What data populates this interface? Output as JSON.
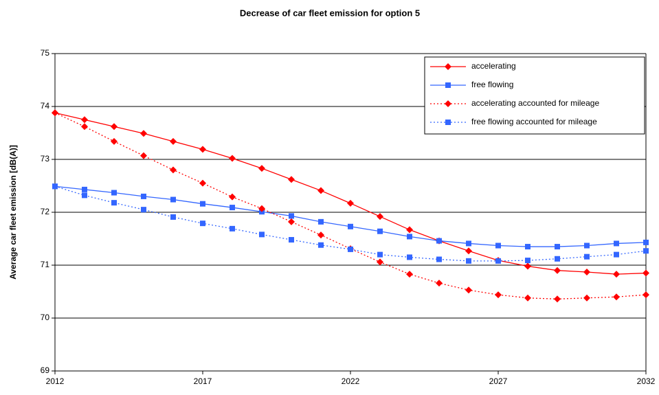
{
  "chart_data": {
    "type": "line",
    "title": "Decrease of car fleet emission for option 5",
    "y_label": "Average car fleet emission [dB(A)]",
    "x": [
      2012,
      2013,
      2014,
      2015,
      2016,
      2017,
      2018,
      2019,
      2020,
      2021,
      2022,
      2023,
      2024,
      2025,
      2026,
      2027,
      2028,
      2029,
      2030,
      2031,
      2032
    ],
    "xlim": [
      2012,
      2032
    ],
    "xticks": [
      2012,
      2017,
      2022,
      2027,
      2032
    ],
    "ylim": [
      69,
      75
    ],
    "yticks": [
      69,
      70,
      71,
      72,
      73,
      74,
      75
    ],
    "grid": true,
    "legend": "top-right",
    "series": [
      {
        "name": "accelerating",
        "color": "#ff0000",
        "line_style": "solid",
        "marker": "diamond",
        "values": [
          73.88,
          73.75,
          73.62,
          73.49,
          73.34,
          73.19,
          73.02,
          72.83,
          72.62,
          72.41,
          72.17,
          71.92,
          71.67,
          71.46,
          71.27,
          71.09,
          70.98,
          70.9,
          70.87,
          70.83,
          70.85
        ]
      },
      {
        "name": "free flowing",
        "color": "#3366ff",
        "line_style": "solid",
        "marker": "square",
        "values": [
          72.49,
          72.43,
          72.37,
          72.3,
          72.24,
          72.16,
          72.09,
          72.01,
          71.93,
          71.82,
          71.73,
          71.64,
          71.54,
          71.46,
          71.41,
          71.37,
          71.35,
          71.35,
          71.37,
          71.41,
          71.43
        ]
      },
      {
        "name": "accelerating accounted for mileage",
        "color": "#ff0000",
        "line_style": "dotted",
        "marker": "diamond",
        "values": [
          73.88,
          73.62,
          73.34,
          73.07,
          72.8,
          72.55,
          72.29,
          72.07,
          71.82,
          71.57,
          71.31,
          71.06,
          70.83,
          70.66,
          70.53,
          70.44,
          70.38,
          70.36,
          70.38,
          70.4,
          70.44
        ]
      },
      {
        "name": "free flowing accounted for mileage",
        "color": "#3366ff",
        "line_style": "dotted",
        "marker": "square",
        "values": [
          72.49,
          72.32,
          72.18,
          72.05,
          71.91,
          71.79,
          71.69,
          71.58,
          71.48,
          71.38,
          71.3,
          71.2,
          71.15,
          71.11,
          71.08,
          71.08,
          71.09,
          71.12,
          71.16,
          71.2,
          71.27
        ]
      }
    ]
  }
}
